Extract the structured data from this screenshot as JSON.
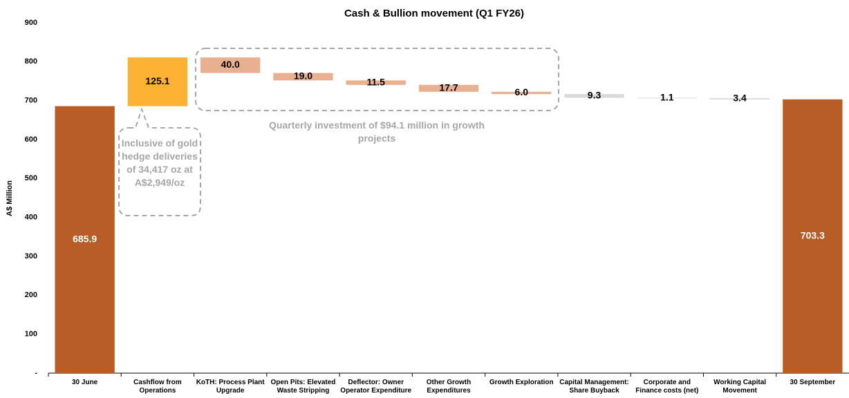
{
  "chart_data": {
    "type": "waterfall",
    "title": "Cash & Bullion movement  (Q1 FY26)",
    "y_label": "A$ Million",
    "categories": [
      "30 June",
      "Cashflow from Operations",
      "KoTH: Process Plant Upgrade",
      "Open Pits: Elevated Waste Stripping",
      "Deflector: Owner Operator Expenditure",
      "Other Growth Expenditures",
      "Growth Exploration",
      "Capital Management: Share Buyback",
      "Corporate and Finance costs (net)",
      "Working Capital Movement",
      "30 September"
    ],
    "measure": [
      "absolute",
      "relative",
      "relative",
      "relative",
      "relative",
      "relative",
      "relative",
      "relative",
      "relative",
      "relative",
      "total"
    ],
    "values": [
      685.9,
      125.1,
      -40.0,
      -19.0,
      -11.5,
      -17.7,
      -6.0,
      -9.3,
      -1.1,
      -3.4,
      703.3
    ],
    "value_labels": [
      "685.9",
      "125.1",
      "40.0",
      "19.0",
      "11.5",
      "17.7",
      "6.0",
      "9.3",
      "1.1",
      "3.4",
      "703.3"
    ],
    "colors": [
      "#b95d27",
      "#fbb131",
      "#e9b08f",
      "#e9b08f",
      "#e9b08f",
      "#e9b08f",
      "#e9b08f",
      "#d9d9d9",
      "#d9d9d9",
      "#d9d9d9",
      "#b95d27"
    ],
    "ylim": [
      0,
      900
    ],
    "yticks": [
      {
        "value": 0,
        "label": "-"
      },
      100,
      200,
      300,
      400,
      500,
      600,
      700,
      800,
      900
    ],
    "annotations": [
      "Inclusive of gold hedge deliveries of 34,417 oz at A$2,949/oz",
      "Quarterly investment of $94.1 million in growth projects"
    ]
  }
}
